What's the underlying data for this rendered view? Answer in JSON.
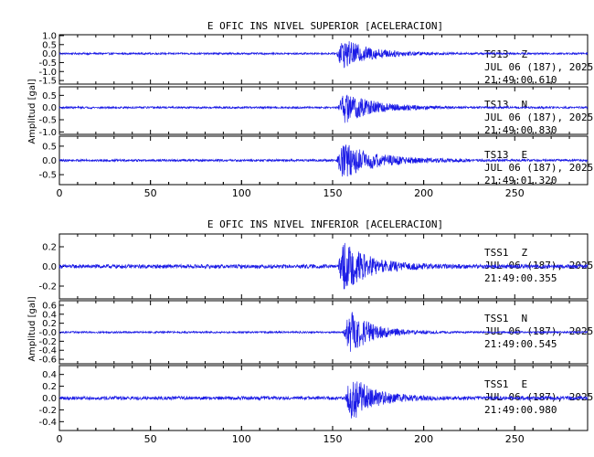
{
  "chart_data": [
    {
      "type": "line",
      "title": "E OFIC INS NIVEL SUPERIOR [ACELERACION]",
      "ylabel": "Amplitud [gal]",
      "xlim": [
        0,
        290
      ],
      "xticks": [
        "0",
        "50",
        "100",
        "150",
        "200",
        "250"
      ],
      "panels": [
        {
          "station": "TS13",
          "component": "Z",
          "date": "JUL 06 (187), 2025",
          "time": "21:49:00.610",
          "ylim": [
            -1.7,
            1.05
          ],
          "yticks": [
            "1.0",
            "0.5",
            "0.0",
            "-0.5",
            "-1.0",
            "-1.5"
          ],
          "event": {
            "onset": 152,
            "peak_amplitude": 1.0,
            "decay": 16,
            "noise": 0.05
          }
        },
        {
          "station": "TS13",
          "component": "N",
          "date": "JUL 06 (187), 2025",
          "time": "21:49:00.830",
          "ylim": [
            -1.1,
            0.85
          ],
          "yticks": [
            "0.5",
            "0.0",
            "-0.5",
            "-1.0"
          ],
          "event": {
            "onset": 153,
            "peak_amplitude": 0.8,
            "decay": 16,
            "noise": 0.04
          }
        },
        {
          "station": "TS13",
          "component": "E",
          "date": "JUL 06 (187), 2025",
          "time": "21:49:01.320",
          "ylim": [
            -0.85,
            0.85
          ],
          "yticks": [
            "0.5",
            "0.0",
            "-0.5"
          ],
          "event": {
            "onset": 152,
            "peak_amplitude": 0.75,
            "decay": 18,
            "noise": 0.04
          }
        }
      ]
    },
    {
      "type": "line",
      "title": "E OFIC INS NIVEL INFERIOR [ACELERACION]",
      "ylabel": "Amplitud [gal]",
      "xlim": [
        0,
        290
      ],
      "xticks": [
        "0",
        "50",
        "100",
        "150",
        "200",
        "250"
      ],
      "panels": [
        {
          "station": "TSS1",
          "component": "Z",
          "date": "JUL 06 (187), 2025",
          "time": "21:49:00.355",
          "ylim": [
            -0.33,
            0.33
          ],
          "yticks": [
            "0.2",
            "0.0",
            "-0.2"
          ],
          "event": {
            "onset": 153,
            "peak_amplitude": 0.3,
            "decay": 14,
            "noise": 0.02
          }
        },
        {
          "station": "TSS1",
          "component": "N",
          "date": "JUL 06 (187), 2025",
          "time": "21:49:00.545",
          "ylim": [
            -0.7,
            0.7
          ],
          "yticks": [
            "0.6",
            "0.4",
            "0.2",
            "-0.0",
            "-0.2",
            "-0.4",
            "-0.6"
          ],
          "event": {
            "onset": 156,
            "peak_amplitude": 0.65,
            "decay": 12,
            "noise": 0.02
          }
        },
        {
          "station": "TSS1",
          "component": "E",
          "date": "JUL 06 (187), 2025",
          "time": "21:49:00.980",
          "ylim": [
            -0.55,
            0.55
          ],
          "yticks": [
            "0.4",
            "0.2",
            "0.0",
            "-0.2",
            "-0.4"
          ],
          "event": {
            "onset": 157,
            "peak_amplitude": 0.5,
            "decay": 12,
            "noise": 0.03
          }
        }
      ]
    }
  ]
}
